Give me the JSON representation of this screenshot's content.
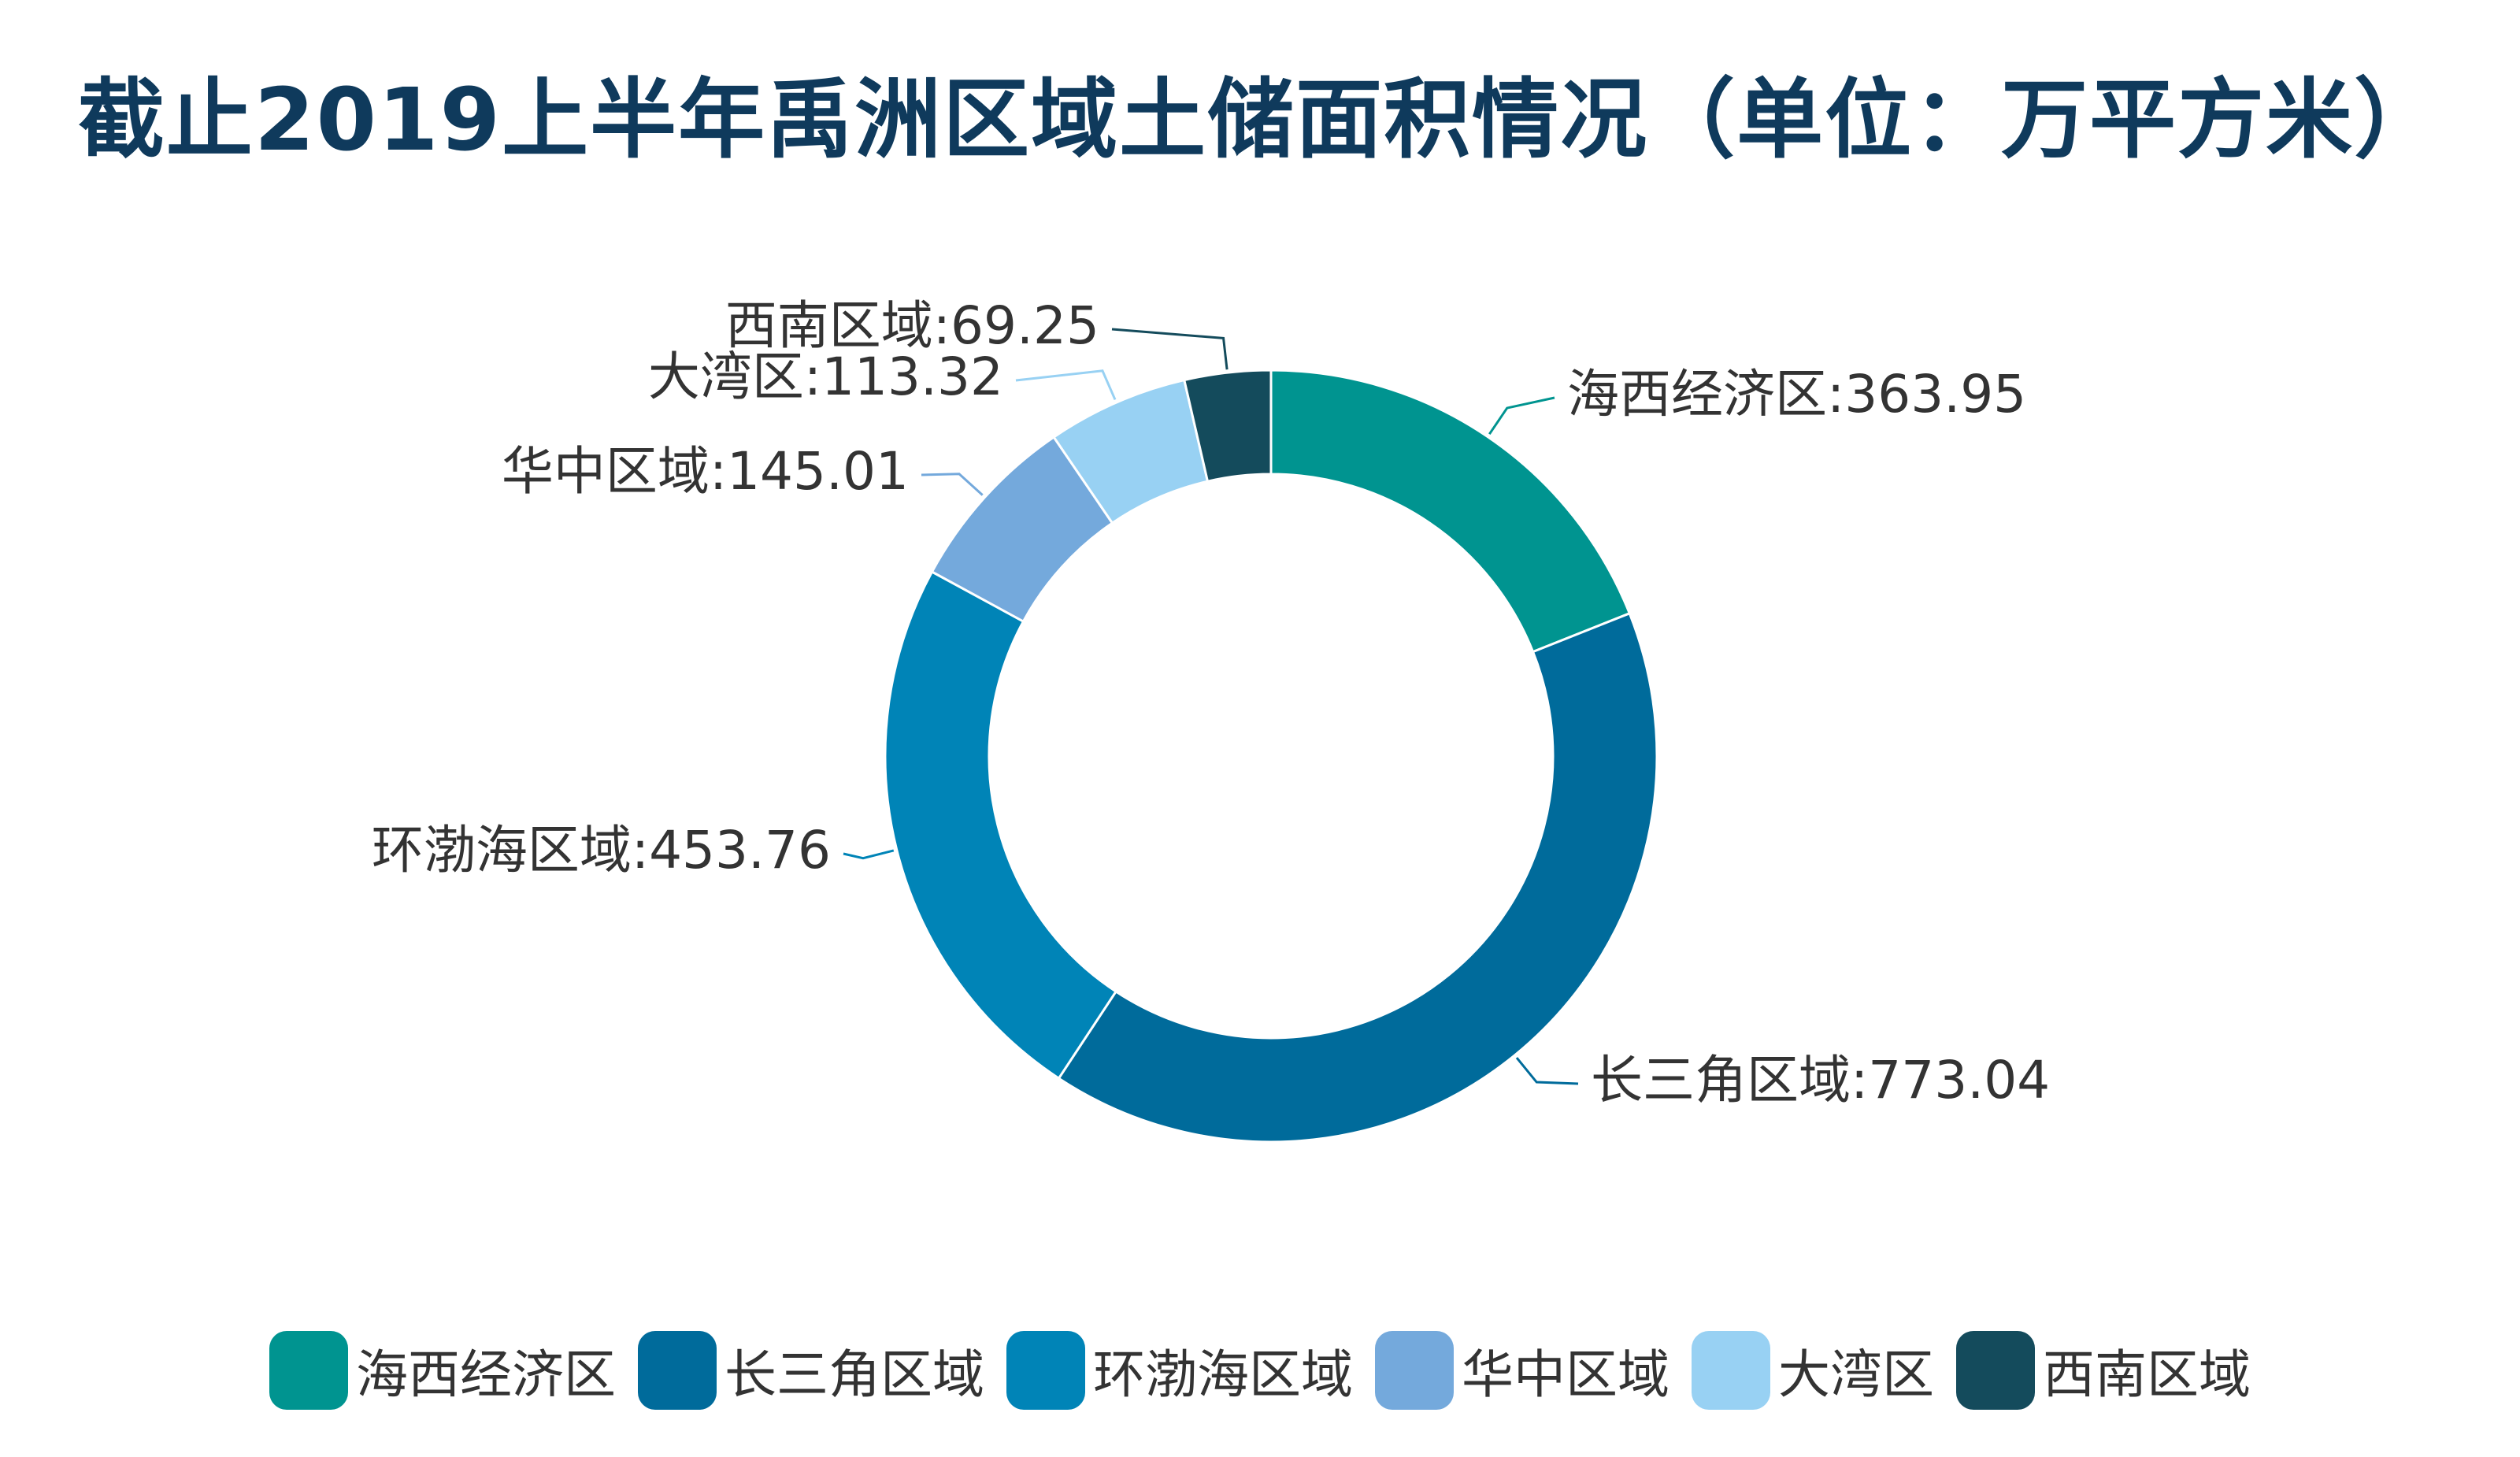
{
  "title": "截止2019上半年禹洲区域土储面积情况（单位：万平方米）",
  "chart_data": {
    "type": "pie",
    "donut": true,
    "title": "截止2019上半年禹洲区域土储面积情况（单位：万平方米）",
    "legend_position": "bottom",
    "slices": [
      {
        "name": "海西经济区",
        "value": 363.95,
        "label": "海西经济区:363.95",
        "color": "#009490"
      },
      {
        "name": "长三角区域",
        "value": 773.04,
        "label": "长三角区域:773.04",
        "color": "#006b9b"
      },
      {
        "name": "环渤海区域",
        "value": 453.76,
        "label": "环渤海区域:453.76",
        "color": "#0084b7"
      },
      {
        "name": "华中区域",
        "value": 145.01,
        "label": "华中区域:145.01",
        "color": "#74a9dc"
      },
      {
        "name": "大湾区",
        "value": 113.32,
        "label": "大湾区:113.32",
        "color": "#98d1f3"
      },
      {
        "name": "西南区域",
        "value": 69.25,
        "label": "西南区域:69.25",
        "color": "#144b5c"
      }
    ]
  }
}
